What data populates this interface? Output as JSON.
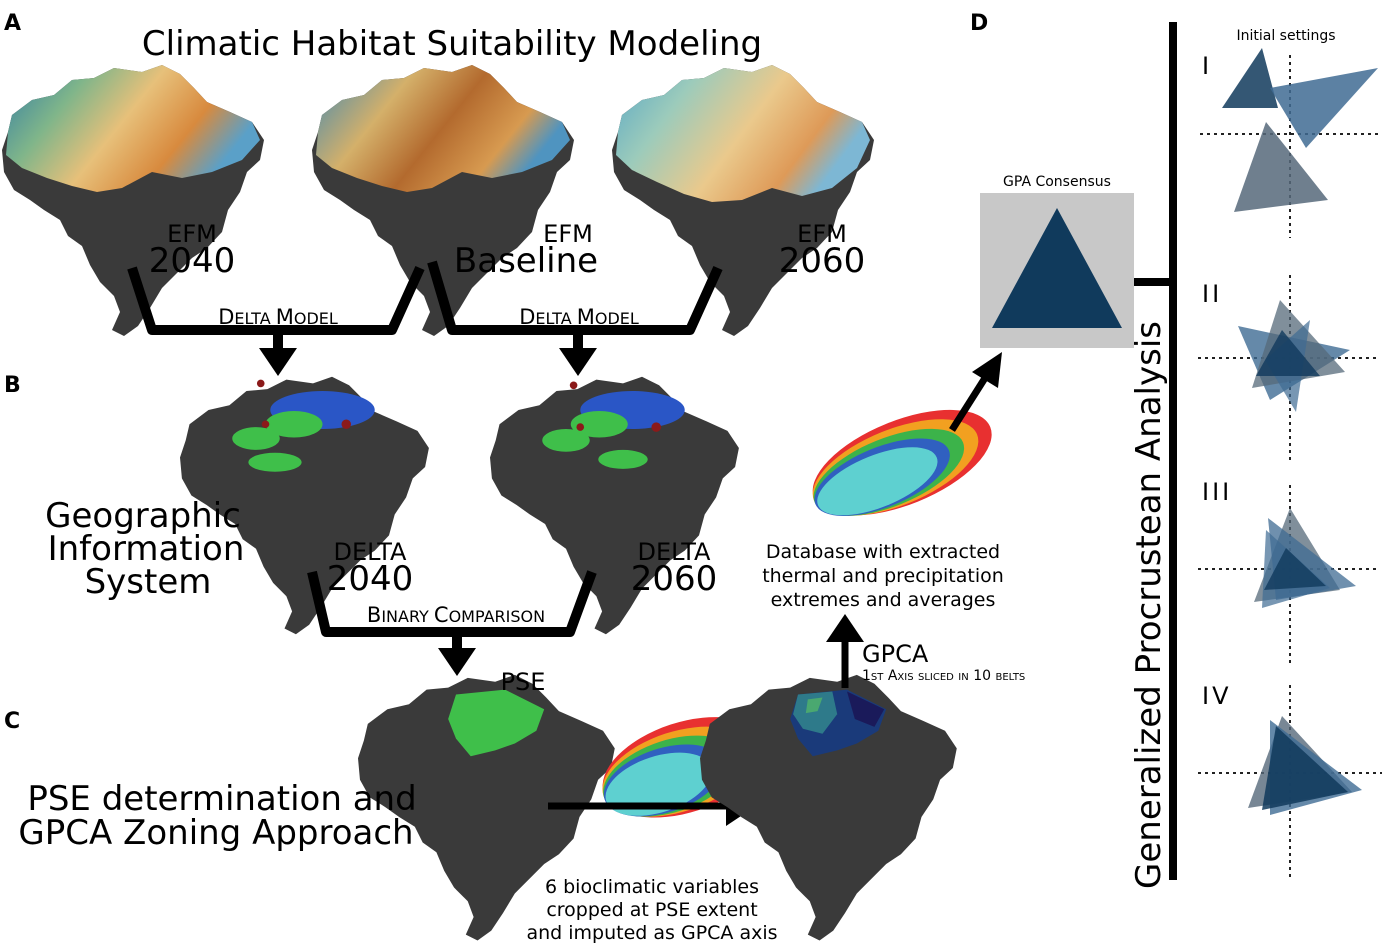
{
  "panels": {
    "a": "A",
    "b": "B",
    "c": "C",
    "d": "D"
  },
  "titles": {
    "main": "Climatic Habitat Suitability Modeling",
    "gis_line1": "Geographic",
    "gis_line2": "Information",
    "gis_line3": "System",
    "pse_line1": "PSE determination and",
    "pse_line2": "GPCA Zoning Approach",
    "gpa_vertical": "Generalized Procrustean Analysis"
  },
  "maps": {
    "efm2040": {
      "top": "EFM",
      "bottom": "2040"
    },
    "efmbase": {
      "top": "EFM",
      "bottom": "Baseline"
    },
    "efm2060": {
      "top": "EFM",
      "bottom": "2060"
    },
    "delta2040": {
      "top": "DELTA",
      "bottom": "2040"
    },
    "delta2060": {
      "top": "DELTA",
      "bottom": "2060"
    },
    "pse": "PSE"
  },
  "connectors": {
    "delta_model_first": "D",
    "delta_model_rest": "ELTA ",
    "delta_model_first2": "M",
    "delta_model_rest2": "ODEL",
    "binary_b": "B",
    "binary_inary": "INARY ",
    "binary_c": "C",
    "binary_omparison": "OMPARISON"
  },
  "gpca": {
    "label": "GPCA",
    "sub": "1st Axis sliced in 10 belts"
  },
  "database": {
    "line1": "Database with extracted",
    "line2": "thermal and precipitation",
    "line3": "extremes and averages"
  },
  "bioclim": {
    "line1": "6 bioclimatic variables",
    "line2": "cropped at PSE extent",
    "line3": "and imputed as GPCA axis"
  },
  "gpa": {
    "consensus": "GPA Consensus",
    "initial": "Initial settings",
    "stages": [
      "I",
      "II",
      "III",
      "IV"
    ]
  },
  "colors": {
    "land": "#3a3a3a",
    "consensus_box": "#c8c8c8",
    "triangle_dark": "#103a5c",
    "triangle_mid": "#3f6b93",
    "triangle_grey": "#56697a",
    "delta_blue": "#2a56c6",
    "delta_green": "#3fbf4a",
    "delta_red": "#8b1a1a",
    "pse_green": "#3fbf4a"
  }
}
